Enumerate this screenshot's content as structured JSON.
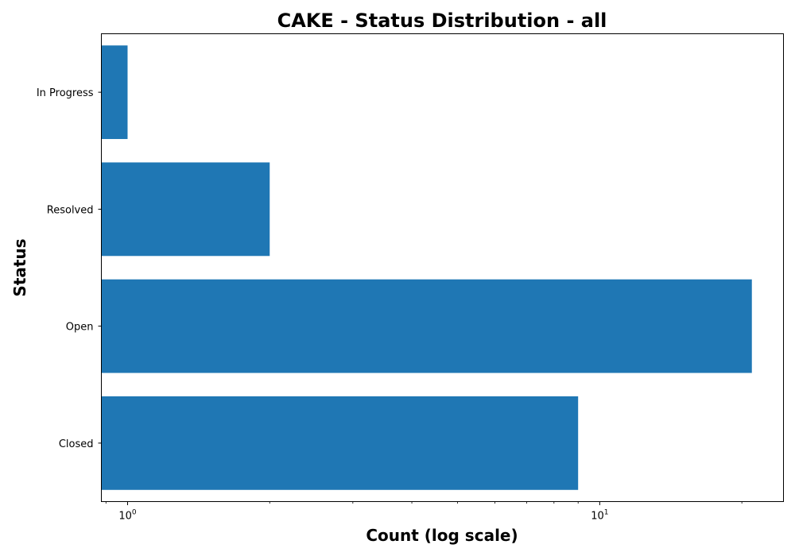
{
  "chart_data": {
    "type": "bar",
    "orientation": "horizontal",
    "title": "CAKE - Status Distribution - all",
    "xlabel": "Count (log scale)",
    "ylabel": "Status",
    "x_scale": "log",
    "xlim": [
      0.88,
      24.5
    ],
    "categories": [
      "Closed",
      "Open",
      "Resolved",
      "In Progress"
    ],
    "values": [
      9,
      21,
      2,
      1
    ],
    "x_major_ticks": [
      {
        "base": "10",
        "exp": "0",
        "value": 1
      },
      {
        "base": "10",
        "exp": "1",
        "value": 10
      }
    ],
    "bar_color": "#1f77b4",
    "grid": false,
    "legend": "none"
  }
}
